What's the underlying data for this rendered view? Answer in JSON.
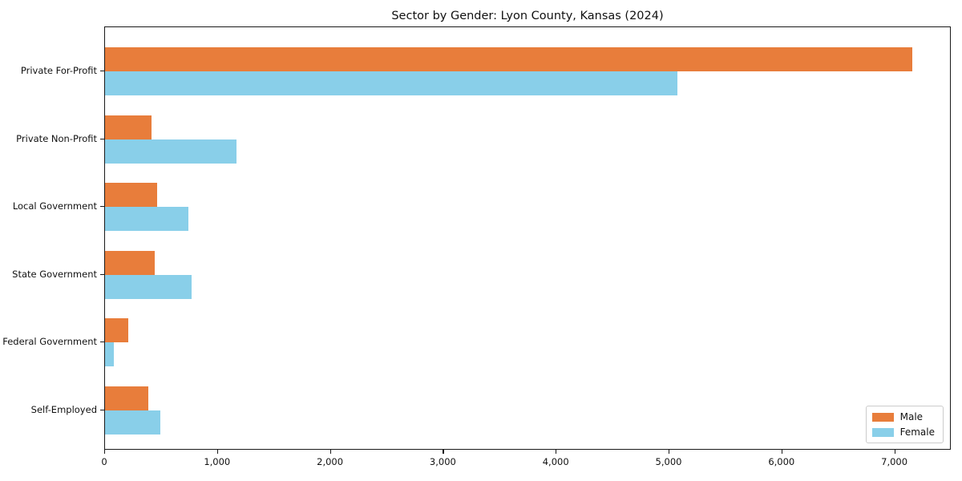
{
  "title": "Sector by Gender: Lyon County, Kansas (2024)",
  "colors": {
    "male_bar": "#e87d3b",
    "female_bar": "#89cfe9",
    "axis_spine": "#1a1a1a",
    "legend_border": "#cccccc",
    "text": "#111111",
    "background": "#ffffff"
  },
  "legend": {
    "position": "lower right",
    "entries": [
      {
        "label": "Male",
        "color": "#e87d3b"
      },
      {
        "label": "Female",
        "color": "#89cfe9"
      }
    ]
  },
  "chart_data": {
    "type": "bar",
    "orientation": "horizontal",
    "title": "Sector by Gender: Lyon County, Kansas (2024)",
    "categories": [
      "Private For-Profit",
      "Private Non-Profit",
      "Local Government",
      "State Government",
      "Federal Government",
      "Self-Employed"
    ],
    "series": [
      {
        "name": "Male",
        "color": "#e87d3b",
        "values": [
          7150,
          410,
          460,
          440,
          205,
          380
        ]
      },
      {
        "name": "Female",
        "color": "#89cfe9",
        "values": [
          5070,
          1165,
          740,
          770,
          80,
          490
        ]
      }
    ],
    "xlabel": "",
    "ylabel": "",
    "xlim": [
      0,
      7500
    ],
    "xticks": [
      0,
      1000,
      2000,
      3000,
      4000,
      5000,
      6000,
      7000
    ],
    "xtick_labels": [
      "0",
      "1,000",
      "2,000",
      "3,000",
      "4,000",
      "5,000",
      "6,000",
      "7,000"
    ],
    "grid": false,
    "legend_position": "lower right"
  }
}
